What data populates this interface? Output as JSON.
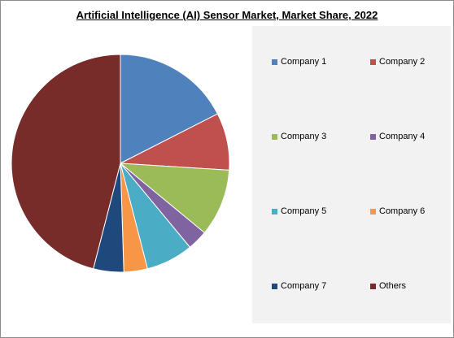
{
  "chart_data": {
    "type": "pie",
    "title": "Artificial Intelligence (AI) Sensor Market, Market Share, 2022",
    "legend_position": "right",
    "slices": [
      {
        "label": "Company 1",
        "value": 17.5,
        "color": "#4f81bd"
      },
      {
        "label": "Company 2",
        "value": 8.5,
        "color": "#c0504d"
      },
      {
        "label": "Company 3",
        "value": 10.0,
        "color": "#9bbb59"
      },
      {
        "label": "Company 4",
        "value": 3.0,
        "color": "#8064a2"
      },
      {
        "label": "Company 5",
        "value": 7.0,
        "color": "#4bacc6"
      },
      {
        "label": "Company 6",
        "value": 3.5,
        "color": "#f79646"
      },
      {
        "label": "Company 7",
        "value": 4.5,
        "color": "#1f497d"
      },
      {
        "label": "Others",
        "value": 46.0,
        "color": "#772c2a"
      }
    ]
  }
}
